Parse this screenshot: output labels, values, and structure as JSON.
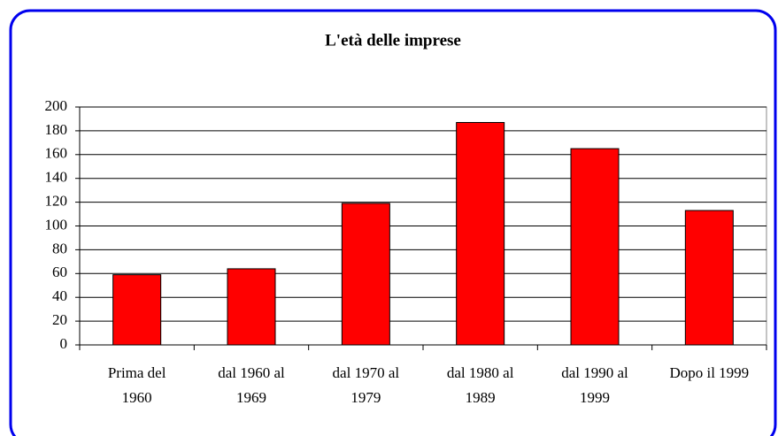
{
  "chart_data": {
    "type": "bar",
    "title": "L'età delle imprese",
    "categories": [
      "Prima del 1960",
      "dal 1960 al 1969",
      "dal 1970 al 1979",
      "dal 1980 al 1989",
      "dal 1990 al 1999",
      "Dopo il 1999"
    ],
    "values": [
      59,
      64,
      119,
      187,
      165,
      113
    ],
    "color": "#ff0000",
    "ylim": [
      0,
      200
    ],
    "yticks": [
      0,
      20,
      40,
      60,
      80,
      100,
      120,
      140,
      160,
      180,
      200
    ],
    "grid": true
  }
}
